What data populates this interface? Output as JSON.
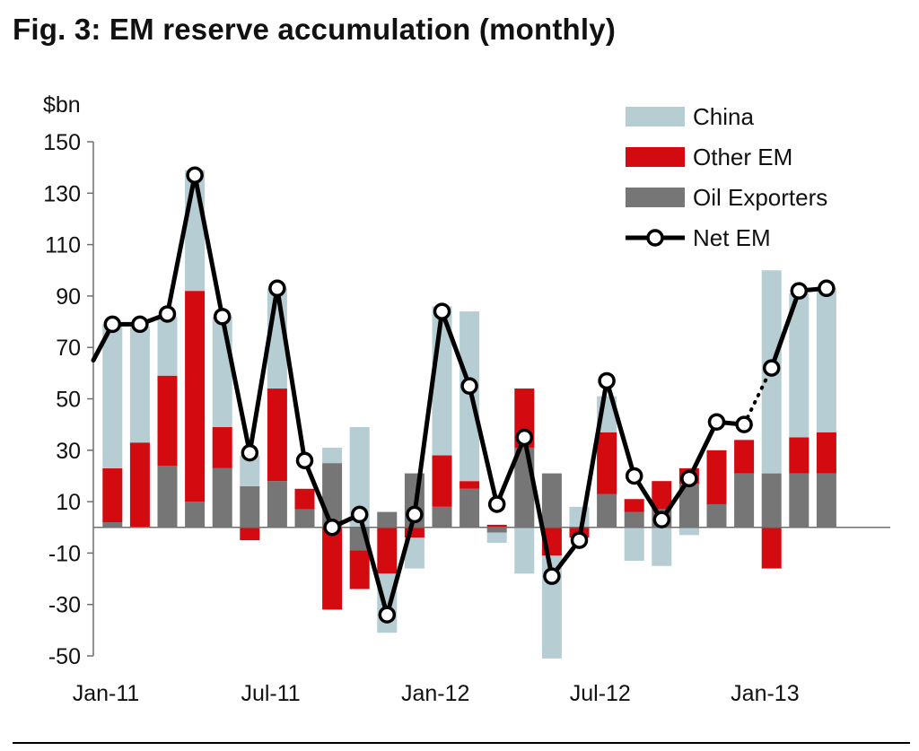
{
  "title": "Fig. 3: EM reserve accumulation (monthly)",
  "colors": {
    "china": "#b5cdd3",
    "other_em": "#d30a10",
    "oil_exporters": "#767676",
    "net_em": "#000000"
  },
  "chart_data": {
    "type": "bar",
    "stacked": true,
    "ylabel": "$bn",
    "ylim": [
      -50,
      150
    ],
    "yticks": [
      150,
      130,
      110,
      90,
      70,
      50,
      30,
      10,
      -10,
      -30,
      -50
    ],
    "xlim_months": [
      "Jan-11",
      "Apr-13"
    ],
    "xtick_labels": [
      "Jan-11",
      "Jul-11",
      "Jan-12",
      "Jul-12",
      "Jan-13"
    ],
    "xtick_indices": [
      0,
      6,
      12,
      18,
      24
    ],
    "categories": [
      "Jan-11",
      "Feb-11",
      "Mar-11",
      "Apr-11",
      "May-11",
      "Jun-11",
      "Jul-11",
      "Aug-11",
      "Sep-11",
      "Oct-11",
      "Nov-11",
      "Dec-11",
      "Jan-12",
      "Feb-12",
      "Mar-12",
      "Apr-12",
      "May-12",
      "Jun-12",
      "Jul-12",
      "Aug-12",
      "Sep-12",
      "Oct-12",
      "Nov-12",
      "Dec-12",
      "Jan-13",
      "Feb-13",
      "Mar-13"
    ],
    "legend_position": "top-right",
    "series": [
      {
        "name": "Oil Exporters",
        "kind": "bar",
        "values": [
          2,
          0,
          24,
          10,
          23,
          16,
          18,
          7,
          25,
          -9,
          6,
          21,
          8,
          15,
          -2,
          31,
          21,
          0,
          13,
          6,
          7,
          17,
          9,
          21,
          21,
          21,
          21
        ]
      },
      {
        "name": "Other EM",
        "kind": "bar",
        "values": [
          21,
          33,
          35,
          82,
          16,
          -5,
          36,
          8,
          -32,
          -15,
          -18,
          -4,
          20,
          3,
          1,
          23,
          -11,
          -4,
          24,
          5,
          11,
          6,
          21,
          13,
          -16,
          14,
          16
        ]
      },
      {
        "name": "China",
        "kind": "bar",
        "values": [
          56,
          45,
          23,
          47,
          43,
          12,
          39,
          0,
          6,
          39,
          -23,
          -12,
          58,
          66,
          -4,
          -18,
          -40,
          8,
          14,
          -13,
          -15,
          -3,
          0,
          0,
          79,
          56,
          56
        ]
      },
      {
        "name": "Net EM",
        "kind": "line",
        "values": [
          79,
          79,
          83,
          137,
          82,
          29,
          93,
          26,
          0,
          5,
          -34,
          5,
          84,
          55,
          9,
          35,
          -19,
          -5,
          57,
          20,
          3,
          19,
          41,
          40,
          62,
          92,
          93
        ],
        "line_start_value": 65,
        "dotted_segment": [
          23,
          24
        ]
      }
    ]
  }
}
